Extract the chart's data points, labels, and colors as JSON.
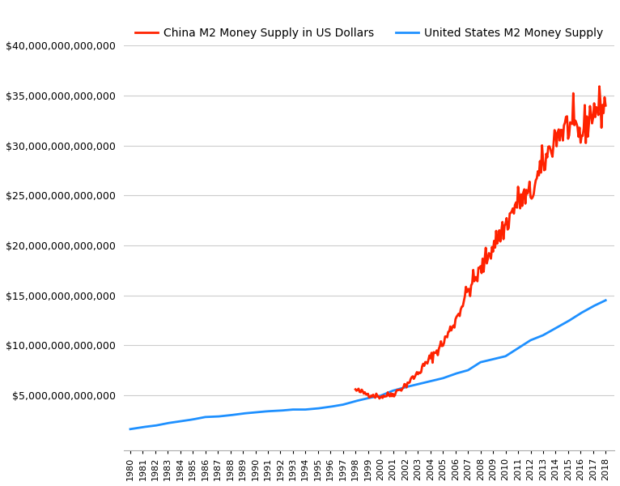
{
  "china_color": "#ff2200",
  "usa_color": "#1e90ff",
  "background_color": "#ffffff",
  "grid_color": "#cccccc",
  "china_label": "China M2 Money Supply in US Dollars",
  "usa_label": "United States M2 Money Supply",
  "ylim_min": -500000000000,
  "ylim_max": 40000000000000,
  "yticks": [
    5000000000000,
    10000000000000,
    15000000000000,
    20000000000000,
    25000000000000,
    30000000000000,
    35000000000000,
    40000000000000
  ],
  "xlim_min": 1979.5,
  "xlim_max": 2018.7,
  "line_width": 2.0,
  "china_anchors_years": [
    1998,
    1999,
    2000,
    2001,
    2002,
    2003,
    2004,
    2005,
    2006,
    2007,
    2008,
    2009,
    2010,
    2011,
    2012,
    2013,
    2014,
    2015,
    2016,
    2017,
    2018
  ],
  "china_anchors_vals": [
    5500000000000.0,
    5100000000000.0,
    4850000000000.0,
    5100000000000.0,
    6000000000000.0,
    7200000000000.0,
    8700000000000.0,
    10200000000000.0,
    12500000000000.0,
    15500000000000.0,
    17500000000000.0,
    20000000000000.0,
    22000000000000.0,
    24500000000000.0,
    25000000000000.0,
    28000000000000.0,
    31000000000000.0,
    32000000000000.0,
    31000000000000.0,
    33500000000000.0,
    34000000000000.0
  ],
  "usa_anchors_years": [
    1980,
    1981,
    1982,
    1983,
    1984,
    1985,
    1986,
    1987,
    1988,
    1989,
    1990,
    1991,
    1992,
    1993,
    1994,
    1995,
    1996,
    1997,
    1998,
    1999,
    2000,
    2001,
    2002,
    2003,
    2004,
    2005,
    2006,
    2007,
    2008,
    2009,
    2010,
    2011,
    2012,
    2013,
    2014,
    2015,
    2016,
    2017,
    2018
  ],
  "usa_anchors_vals": [
    1600000000000.0,
    1800000000000.0,
    1950000000000.0,
    2200000000000.0,
    2380000000000.0,
    2570000000000.0,
    2810000000000.0,
    2860000000000.0,
    2990000000000.0,
    3160000000000.0,
    3280000000000.0,
    3390000000000.0,
    3450000000000.0,
    3560000000000.0,
    3560000000000.0,
    3670000000000.0,
    3840000000000.0,
    4050000000000.0,
    4400000000000.0,
    4700000000000.0,
    4940000000000.0,
    5450000000000.0,
    5800000000000.0,
    6100000000000.0,
    6400000000000.0,
    6700000000000.0,
    7150000000000.0,
    7500000000000.0,
    8300000000000.0,
    8600000000000.0,
    8900000000000.0,
    9700000000000.0,
    10500000000000.0,
    11000000000000.0,
    11700000000000.0,
    12400000000000.0,
    13200000000000.0,
    13900000000000.0,
    14500000000000.0
  ]
}
